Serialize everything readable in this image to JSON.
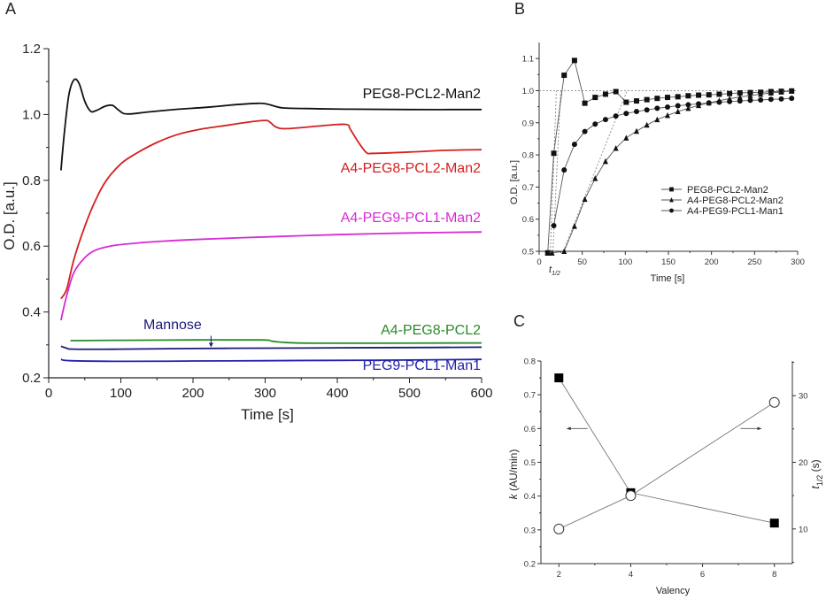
{
  "chart_data": [
    {
      "id": "A",
      "type": "line",
      "panel_label": "A",
      "title": "",
      "xlabel": "Time [s]",
      "ylabel": "O.D. [a.u.]",
      "xlim": [
        0,
        600
      ],
      "ylim": [
        0.2,
        1.2
      ],
      "xticks": [
        0,
        100,
        200,
        300,
        400,
        500,
        600
      ],
      "yticks": [
        0.2,
        0.4,
        0.6,
        0.8,
        1.0,
        1.2
      ],
      "ytick_labels": [
        "0.2",
        "0.4",
        "0.6",
        "0.8",
        "1.0",
        "1.2"
      ],
      "grid": false,
      "legend": "inline labels at right",
      "series": [
        {
          "name": "PEG8-PCL2-Man2",
          "color": "#111111",
          "points": [
            [
              17,
              0.83
            ],
            [
              22,
              0.95
            ],
            [
              28,
              1.06
            ],
            [
              35,
              1.105
            ],
            [
              42,
              1.095
            ],
            [
              50,
              1.04
            ],
            [
              58,
              1.01
            ],
            [
              66,
              1.012
            ],
            [
              78,
              1.025
            ],
            [
              88,
              1.028
            ],
            [
              96,
              1.015
            ],
            [
              104,
              1.003
            ],
            [
              115,
              1.002
            ],
            [
              140,
              1.008
            ],
            [
              180,
              1.016
            ],
            [
              220,
              1.022
            ],
            [
              260,
              1.03
            ],
            [
              290,
              1.034
            ],
            [
              302,
              1.032
            ],
            [
              312,
              1.026
            ],
            [
              325,
              1.02
            ],
            [
              360,
              1.018
            ],
            [
              420,
              1.016
            ],
            [
              500,
              1.015
            ],
            [
              600,
              1.015
            ]
          ]
        },
        {
          "name": "A4-PEG8-PCL2-Man2",
          "color": "#d42020",
          "points": [
            [
              17,
              0.44
            ],
            [
              25,
              0.47
            ],
            [
              35,
              0.56
            ],
            [
              50,
              0.66
            ],
            [
              65,
              0.74
            ],
            [
              80,
              0.8
            ],
            [
              100,
              0.85
            ],
            [
              120,
              0.88
            ],
            [
              150,
              0.915
            ],
            [
              180,
              0.94
            ],
            [
              210,
              0.955
            ],
            [
              250,
              0.968
            ],
            [
              280,
              0.978
            ],
            [
              300,
              0.982
            ],
            [
              306,
              0.978
            ],
            [
              315,
              0.962
            ],
            [
              330,
              0.957
            ],
            [
              380,
              0.966
            ],
            [
              412,
              0.97
            ],
            [
              418,
              0.955
            ],
            [
              428,
              0.92
            ],
            [
              440,
              0.885
            ],
            [
              450,
              0.882
            ],
            [
              500,
              0.886
            ],
            [
              550,
              0.891
            ],
            [
              600,
              0.893
            ]
          ]
        },
        {
          "name": "A4-PEG9-PCL1-Man2",
          "color": "#d62ad6",
          "points": [
            [
              17,
              0.375
            ],
            [
              25,
              0.45
            ],
            [
              35,
              0.52
            ],
            [
              50,
              0.565
            ],
            [
              65,
              0.588
            ],
            [
              85,
              0.6
            ],
            [
              110,
              0.607
            ],
            [
              150,
              0.614
            ],
            [
              200,
              0.62
            ],
            [
              300,
              0.628
            ],
            [
              400,
              0.635
            ],
            [
              500,
              0.64
            ],
            [
              600,
              0.643
            ]
          ]
        },
        {
          "name": "A4-PEG8-PCL2",
          "color": "#2a8a2a",
          "points": [
            [
              30,
              0.313
            ],
            [
              100,
              0.314
            ],
            [
              200,
              0.315
            ],
            [
              295,
              0.315
            ],
            [
              310,
              0.311
            ],
            [
              330,
              0.307
            ],
            [
              370,
              0.305
            ],
            [
              450,
              0.305
            ],
            [
              600,
              0.306
            ]
          ]
        },
        {
          "name": "Mannose",
          "color": "#1a1a7a",
          "points": [
            [
              17,
              0.296
            ],
            [
              25,
              0.29
            ],
            [
              35,
              0.287
            ],
            [
              100,
              0.287
            ],
            [
              200,
              0.289
            ],
            [
              300,
              0.29
            ],
            [
              400,
              0.291
            ],
            [
              500,
              0.292
            ],
            [
              600,
              0.293
            ]
          ]
        },
        {
          "name": "PEG9-PCL1-Man1",
          "color": "#2222aa",
          "points": [
            [
              17,
              0.256
            ],
            [
              30,
              0.252
            ],
            [
              100,
              0.25
            ],
            [
              200,
              0.251
            ],
            [
              300,
              0.252
            ],
            [
              400,
              0.253
            ],
            [
              500,
              0.254
            ],
            [
              600,
              0.256
            ]
          ]
        }
      ],
      "annotations": [
        {
          "text": "Mannose",
          "arrow_to": [
            225,
            0.29
          ],
          "color": "#1a1a7a"
        }
      ]
    },
    {
      "id": "B",
      "type": "scatter",
      "panel_label": "B",
      "title": "",
      "xlabel": "Time [s]",
      "ylabel": "O.D. [a.u.]",
      "xlim": [
        0,
        300
      ],
      "ylim": [
        0.5,
        1.15
      ],
      "xticks": [
        0,
        50,
        100,
        150,
        200,
        250,
        300
      ],
      "yticks": [
        0.5,
        0.6,
        0.7,
        0.8,
        0.9,
        1.0,
        1.1
      ],
      "ytick_labels": [
        "0.5",
        "0.6",
        "0.7",
        "0.8",
        "0.9",
        "1.0",
        "1.1"
      ],
      "grid": false,
      "legend": "center-right",
      "reference_line_y": 1.0,
      "x_annotation": "t",
      "x_annotation_sub": "1/2",
      "series": [
        {
          "name": "PEG8-PCL2-Man2",
          "marker": "square",
          "x": [
            10,
            17,
            29,
            41,
            53,
            65,
            77,
            89,
            101,
            113,
            125,
            137,
            149,
            161,
            173,
            185,
            197,
            209,
            221,
            233,
            245,
            257,
            269,
            281,
            293
          ],
          "y": [
            0.49,
            0.805,
            1.048,
            1.094,
            0.961,
            0.979,
            0.989,
            0.997,
            0.964,
            0.968,
            0.972,
            0.976,
            0.979,
            0.981,
            0.984,
            0.986,
            0.987,
            0.989,
            0.991,
            0.993,
            0.994,
            0.995,
            0.997,
            0.998,
            0.999
          ]
        },
        {
          "name": "A4-PEG8-PCL2-Man2",
          "marker": "triangle",
          "x": [
            10,
            15,
            29,
            41,
            53,
            65,
            77,
            89,
            101,
            113,
            125,
            137,
            149,
            161,
            173,
            185,
            197,
            209,
            221,
            233,
            245,
            257,
            269,
            281,
            293
          ],
          "y": [
            0.49,
            0.49,
            0.5,
            0.578,
            0.662,
            0.727,
            0.78,
            0.821,
            0.853,
            0.874,
            0.893,
            0.91,
            0.923,
            0.935,
            0.945,
            0.954,
            0.962,
            0.969,
            0.975,
            0.98,
            0.985,
            0.989,
            0.993,
            0.996,
            0.999
          ]
        },
        {
          "name": "A4-PEG9-PCL1-Man1",
          "marker": "circle",
          "x": [
            17,
            29,
            41,
            53,
            65,
            77,
            89,
            101,
            113,
            125,
            137,
            149,
            161,
            173,
            185,
            197,
            209,
            221,
            233,
            245,
            257,
            269,
            281,
            293
          ],
          "y": [
            0.58,
            0.753,
            0.833,
            0.873,
            0.896,
            0.91,
            0.921,
            0.929,
            0.935,
            0.94,
            0.945,
            0.949,
            0.953,
            0.956,
            0.959,
            0.962,
            0.964,
            0.966,
            0.968,
            0.97,
            0.971,
            0.973,
            0.974,
            0.976
          ]
        }
      ],
      "tangent_lines": [
        {
          "from": [
            13,
            0.5
          ],
          "to": [
            20,
            1.0
          ]
        },
        {
          "from": [
            16,
            0.5
          ],
          "to": [
            25,
            1.0
          ]
        },
        {
          "from": [
            28,
            0.5
          ],
          "to": [
            102,
            1.0
          ]
        }
      ]
    },
    {
      "id": "C",
      "type": "scatter",
      "panel_label": "C",
      "title": "",
      "xlabel": "Valency",
      "ylabel_left": "k (AU/min)",
      "ylabel_left_italic": "k",
      "ylabel_left_rest": " (AU/min)",
      "ylabel_right": "t1/2 (s)",
      "ylabel_right_main": "t",
      "ylabel_right_sub": "1/2",
      "ylabel_right_rest": " (s)",
      "xlim": [
        1.5,
        8.5
      ],
      "ylim_left": [
        0.2,
        0.8
      ],
      "ylim_right": [
        4.8,
        35.2
      ],
      "xticks": [
        2,
        4,
        6,
        8
      ],
      "yticks_left": [
        0.2,
        0.3,
        0.4,
        0.5,
        0.6,
        0.7,
        0.8
      ],
      "ytick_labels_left": [
        "0.2",
        "0.3",
        "0.4",
        "0.5",
        "0.6",
        "0.7",
        "0.8"
      ],
      "yticks_right": [
        10,
        20,
        30
      ],
      "grid": false,
      "legend": "none",
      "series": [
        {
          "name": "k",
          "axis": "left",
          "marker": "filled-square",
          "x": [
            2,
            4,
            8
          ],
          "y": [
            0.75,
            0.41,
            0.32
          ]
        },
        {
          "name": "t1/2",
          "axis": "right",
          "marker": "open-circle",
          "x": [
            2,
            4,
            8
          ],
          "y": [
            10,
            15,
            29
          ]
        }
      ],
      "arrows": [
        {
          "direction": "left",
          "points_to_axis": "left",
          "at": [
            2.8,
            0.6
          ]
        },
        {
          "direction": "right",
          "points_to_axis": "right",
          "at": [
            7.6,
            0.6
          ]
        }
      ]
    }
  ]
}
